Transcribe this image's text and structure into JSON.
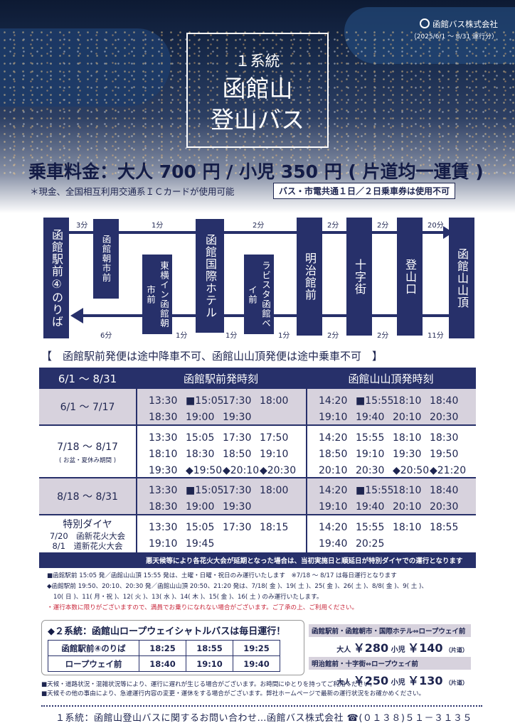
{
  "header": {
    "company": "函館バス株式会社",
    "period": "（2025/6/1 ～ 8/31 運行分）",
    "line_no": "１系統",
    "route_name_1": "函館山",
    "route_name_2": "登山バス"
  },
  "fare": {
    "main": "乗車料金：大人 700 円 / 小児 350 円 ( 片道均一運賃 )",
    "payment_note": "＊現金、全国相互利用交通系ＩＣカードが使用可能",
    "ticket_note": "バス・市電共通１日／２日乗車券は使用不可"
  },
  "route": {
    "stops": [
      "函館駅前④のりば",
      "函館朝市前",
      "東横イン函館朝市前",
      "函館国際ホテル",
      "ラビスタ函館ベイ前",
      "明治館前",
      "十字街",
      "登山口",
      "函館山山頂"
    ],
    "upper_minutes": [
      "3分",
      "1分",
      "2分",
      "2分",
      "2分",
      "20分"
    ],
    "lower_minutes": [
      "6分",
      "1分",
      "1分",
      "1分",
      "2分",
      "2分",
      "11分"
    ]
  },
  "notice": "【　函館駅前発便は途中降車不可、函館山山頂発便は途中乗車不可　】",
  "timetable": {
    "header": [
      "6/1 ～ 8/31",
      "函館駅前発時刻",
      "函館山山頂発時刻"
    ],
    "rows": [
      {
        "label": "6/1 ～ 7/17",
        "sub": "",
        "station": [
          "13:30",
          "■15:05",
          "17:30",
          "18:00",
          "18:30",
          "19:00",
          "19:30",
          ""
        ],
        "summit": [
          "14:20",
          "■15:55",
          "18:10",
          "18:40",
          "19:10",
          "19:40",
          "20:10",
          "20:30"
        ]
      },
      {
        "label": "7/18 ～ 8/17",
        "sub": "( お盆・夏休み期間 )",
        "station": [
          "13:30",
          "15:05",
          "17:30",
          "17:50",
          "18:10",
          "18:30",
          "18:50",
          "19:10",
          "19:30",
          "◆19:50",
          "◆20:10",
          "◆20:30"
        ],
        "summit": [
          "14:20",
          "15:55",
          "18:10",
          "18:30",
          "18:50",
          "19:10",
          "19:30",
          "19:50",
          "20:10",
          "20:30",
          "◆20:50",
          "◆21:20"
        ]
      },
      {
        "label": "8/18 ～ 8/31",
        "sub": "",
        "station": [
          "13:30",
          "■15:05",
          "17:30",
          "18:00",
          "18:30",
          "19:00",
          "19:30",
          ""
        ],
        "summit": [
          "14:20",
          "■15:55",
          "18:10",
          "18:40",
          "19:10",
          "19:40",
          "20:10",
          "20:30"
        ]
      },
      {
        "label": "特別ダイヤ",
        "sub": "",
        "events": [
          "7/20　函新花火大会",
          "8/1　道新花火大会"
        ],
        "station": [
          "13:30",
          "15:05",
          "17:30",
          "18:15",
          "19:10",
          "19:45",
          "",
          ""
        ],
        "summit": [
          "14:20",
          "15:55",
          "18:10",
          "18:55",
          "19:40",
          "20:25",
          "",
          ""
        ]
      }
    ],
    "footer": "悪天候等により各花火大会が延期となった場合は、当初実施日と順延日が特別ダイヤでの運行となります"
  },
  "notes": {
    "n1": "■函館駅前 15:05 発／函館山山頂 15:55 発は、土曜・日曜・祝日のみ運行いたします　※7/18 ～ 8/17 は毎日運行となります",
    "n2": "◆函館駅前 19:50、20:10、20:30 発／函館山山頂 20:50、21:20 発は、7/18( 金 )、19( 土 )、25( 金 )、26( 土 )、8/8( 金 )、9( 土 )、",
    "n3": "10( 日 )、11( 月・祝 )、12( 火 )、13( 水 )、14( 木 )、15( 金 )、16( 土 ) のみ運行いたします。",
    "n4": "・運行本数に限りがございますので、満員でお乗りになれない場合がございます。ご了承の上、ご利用ください。"
  },
  "shuttle": {
    "title": "◆２系統：函館山ロープウェイシャトルバスは毎日運行！",
    "rows": [
      {
        "stop": "函館駅前④のりば",
        "times": [
          "18:25",
          "18:55",
          "19:25"
        ]
      },
      {
        "stop": "ロープウェイ前",
        "times": [
          "18:40",
          "19:10",
          "19:40"
        ]
      }
    ]
  },
  "shuttle_fares": [
    {
      "band": "函館駅前・函館朝市・国際ホテル⇔ロープウェイ前",
      "adult_label": "大人",
      "adult": "￥280",
      "child_label": "小児",
      "child": "￥140",
      "tag": "（片道）"
    },
    {
      "band": "明治館前・十字街⇔ロープウェイ前",
      "adult_label": "大人",
      "adult": "￥250",
      "child_label": "小児",
      "child": "￥130",
      "tag": "（片道）"
    }
  ],
  "bottom_notes": {
    "b1": "■天候・道路状況・混雑状況等により、運行に遅れが生じる場合がございます。お時間にゆとりを持ってご利用ください。",
    "b2": "■天候その他の事由により、急遽運行内容の変更・運休をする場合がございます。弊社ホームページで最新の運行状況をお確かめください。"
  },
  "contact": "１系統：函館山登山バスに関するお問い合わせ…函館バス株式会社 ☎(０１３８)５１－３１３５",
  "colors": {
    "navy": "#27306a",
    "shade": "#d7d2dd",
    "red": "#c8263a"
  }
}
